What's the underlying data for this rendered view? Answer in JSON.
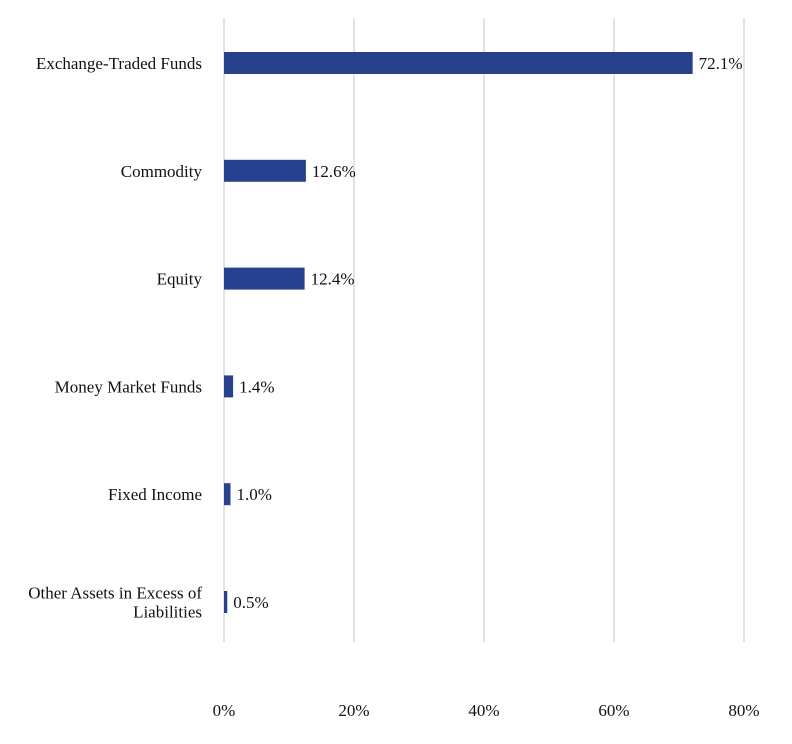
{
  "chart_data": {
    "type": "bar",
    "orientation": "horizontal",
    "categories": [
      "Exchange-Traded Funds",
      "Commodity",
      "Equity",
      "Money Market Funds",
      "Fixed Income",
      "Other Assets in Excess of Liabilities"
    ],
    "values": [
      72.1,
      12.6,
      12.4,
      1.4,
      1.0,
      0.5
    ],
    "data_labels": [
      "72.1%",
      "12.6%",
      "12.4%",
      "1.4%",
      "1.0%",
      "0.5%"
    ],
    "xlim": [
      0,
      80
    ],
    "xticks": [
      0,
      20,
      40,
      60,
      80
    ],
    "xtick_labels": [
      "0%",
      "20%",
      "40%",
      "60%",
      "80%"
    ],
    "grid": "vertical",
    "legend": "none",
    "bar_color": "#27418e"
  }
}
